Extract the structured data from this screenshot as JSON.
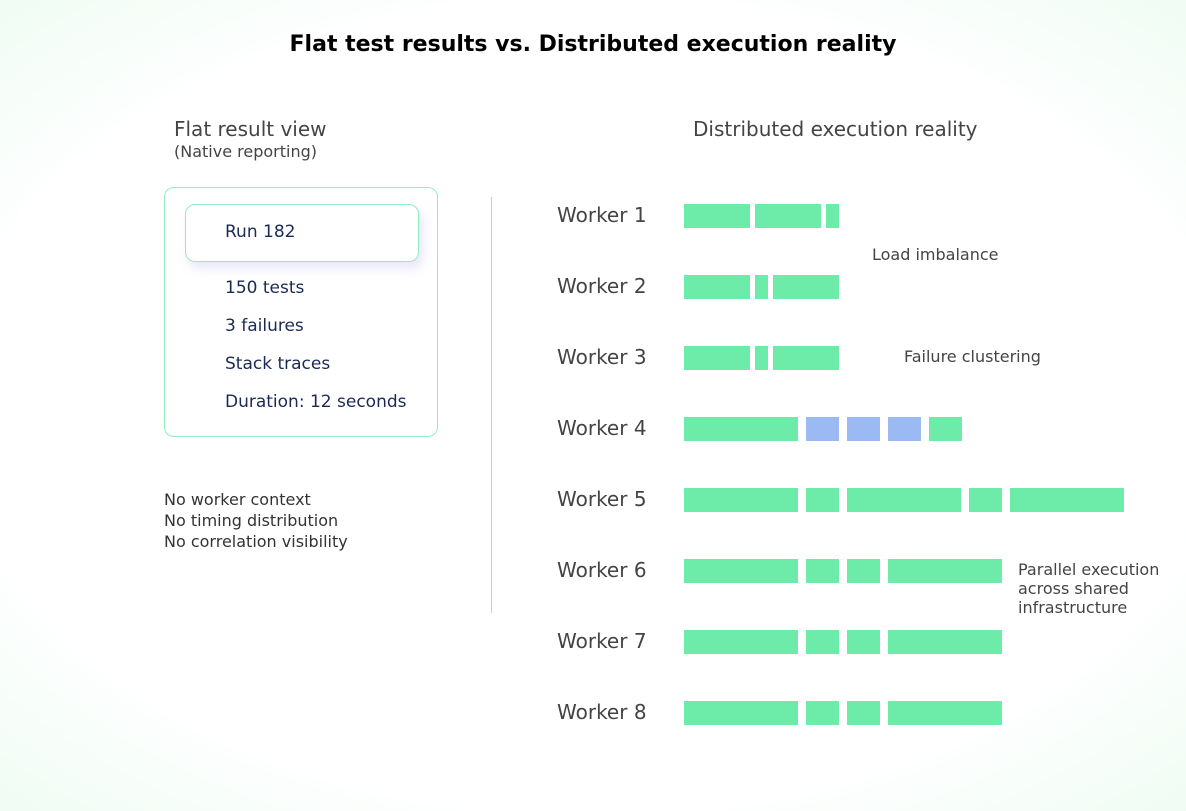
{
  "title": "Flat test results vs. Distributed execution reality",
  "left": {
    "heading": "Flat result view",
    "subheading": "(Native reporting)",
    "run": "Run 182",
    "items": [
      "150 tests",
      "3 failures",
      "Stack traces",
      "Duration: 12 seconds"
    ],
    "notes": [
      "No worker context",
      "No timing distribution",
      "No correlation visibility"
    ]
  },
  "right": {
    "heading": "Distributed execution reality",
    "colors": {
      "pass": "#6deca9",
      "fail": "#9bb9f3"
    },
    "workers": [
      {
        "label": "Worker 1",
        "segments": [
          [
            8,
            "pass"
          ],
          [
            8,
            "pass"
          ],
          [
            1.6,
            "pass"
          ]
        ]
      },
      {
        "label": "Worker 2",
        "segments": [
          [
            8,
            "pass"
          ],
          [
            1.6,
            "pass"
          ],
          [
            8,
            "pass"
          ]
        ]
      },
      {
        "label": "Worker 3",
        "segments": [
          [
            8,
            "pass"
          ],
          [
            1.6,
            "pass"
          ],
          [
            8,
            "pass"
          ]
        ]
      },
      {
        "label": "Worker 4",
        "segments": [
          [
            13.9,
            "pass"
          ],
          [
            4,
            "fail"
          ],
          [
            4,
            "fail"
          ],
          [
            4,
            "fail"
          ],
          [
            4,
            "pass"
          ]
        ]
      },
      {
        "label": "Worker 5",
        "segments": [
          [
            13.9,
            "pass"
          ],
          [
            4,
            "pass"
          ],
          [
            13.9,
            "pass"
          ],
          [
            4,
            "pass"
          ],
          [
            13.9,
            "pass"
          ]
        ]
      },
      {
        "label": "Worker 6",
        "segments": [
          [
            13.9,
            "pass"
          ],
          [
            4,
            "pass"
          ],
          [
            4,
            "pass"
          ],
          [
            13.9,
            "pass"
          ]
        ]
      },
      {
        "label": "Worker 7",
        "segments": [
          [
            13.9,
            "pass"
          ],
          [
            4,
            "pass"
          ],
          [
            4,
            "pass"
          ],
          [
            13.9,
            "pass"
          ]
        ]
      },
      {
        "label": "Worker 8",
        "segments": [
          [
            13.9,
            "pass"
          ],
          [
            4,
            "pass"
          ],
          [
            4,
            "pass"
          ],
          [
            13.9,
            "pass"
          ]
        ]
      }
    ],
    "annotations": [
      "Load imbalance",
      "Failure clustering",
      "Parallel execution",
      "across shared",
      "infrastructure"
    ]
  }
}
